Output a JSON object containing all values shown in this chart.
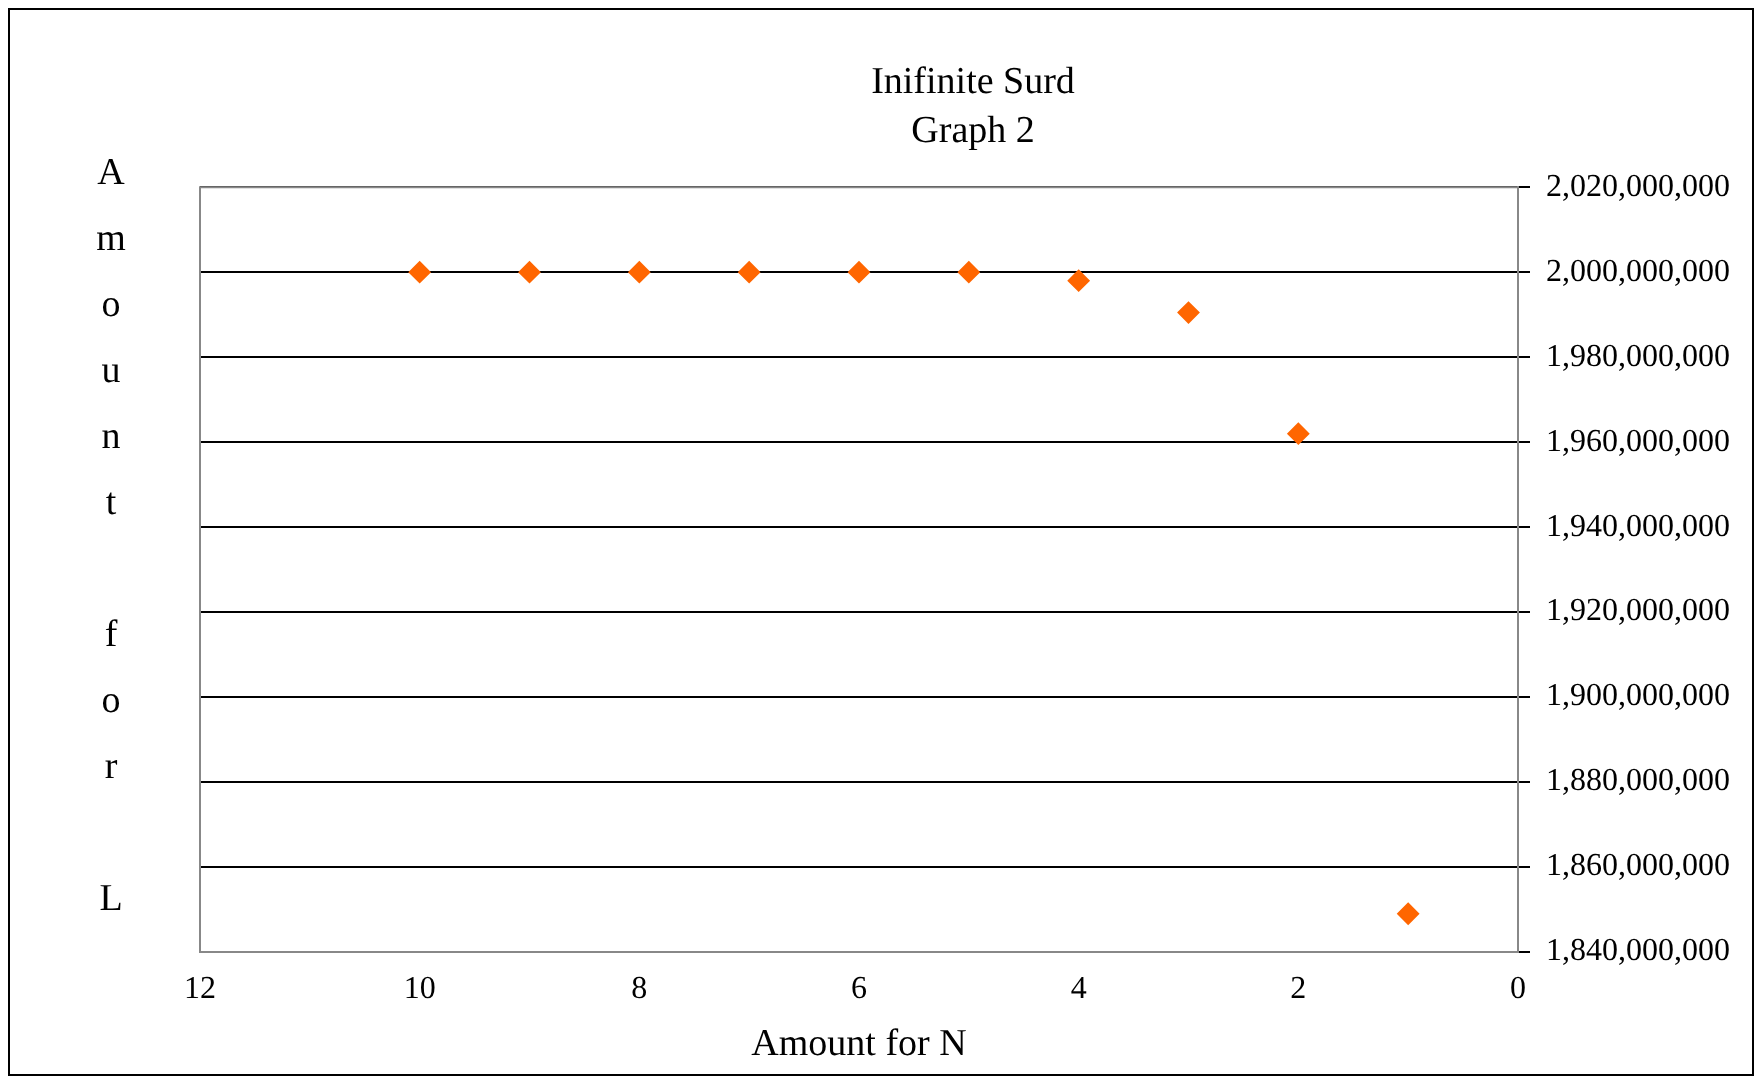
{
  "chart_data": {
    "type": "scatter",
    "title": "Inifinite Surd",
    "subtitle": "Graph 2",
    "xlabel": "Amount for N",
    "ylabel": "Amount for L",
    "x": [
      10,
      9,
      8,
      7,
      6,
      5,
      4,
      3,
      2,
      1
    ],
    "series": [
      {
        "color": "#ff6600",
        "values": [
          2000000000,
          2000000000,
          2000000000,
          2000000000,
          2000000000,
          2000000000,
          1998000000,
          1990500000,
          1962000000,
          1849000000
        ]
      }
    ],
    "xlim": [
      12,
      0
    ],
    "xticks": [
      12,
      10,
      8,
      6,
      4,
      2,
      0
    ],
    "ylim": [
      1840000000,
      2020000000
    ],
    "yticks": [
      {
        "value": 1840000000,
        "label": "1,840,000,000"
      },
      {
        "value": 1860000000,
        "label": "1,860,000,000"
      },
      {
        "value": 1880000000,
        "label": "1,880,000,000"
      },
      {
        "value": 1900000000,
        "label": "1,900,000,000"
      },
      {
        "value": 1920000000,
        "label": "1,920,000,000"
      },
      {
        "value": 1940000000,
        "label": "1,940,000,000"
      },
      {
        "value": 1960000000,
        "label": "1,960,000,000"
      },
      {
        "value": 1980000000,
        "label": "1,980,000,000"
      },
      {
        "value": 2000000000,
        "label": "2,000,000,000"
      },
      {
        "value": 2020000000,
        "label": "2,020,000,000"
      }
    ],
    "grid": "y",
    "legend": false,
    "marker": "diamond"
  }
}
